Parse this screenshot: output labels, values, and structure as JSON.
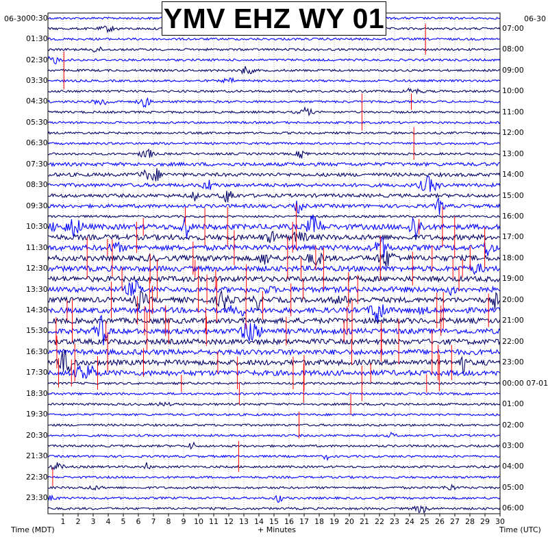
{
  "title": "YMV EHZ WY 01",
  "left_date": "06-30",
  "right_date": "06-30",
  "left_axis_label": "Time (MDT)",
  "right_axis_label": "Time (UTC)",
  "x_axis_label": "+ Minutes",
  "colors": {
    "background": "#ffffff",
    "frame": "#000000",
    "trace_dark": "#000066",
    "trace_blue": "#0000ff",
    "spike": "#ff0000",
    "grid": "#000000"
  },
  "chart_data": {
    "type": "line",
    "title": "YMV EHZ WY 01",
    "xlabel": "+ Minutes",
    "ylabel_left": "Time (MDT)",
    "ylabel_right": "Time (UTC)",
    "xlim": [
      0,
      30
    ],
    "x_ticks": [
      "1",
      "2",
      "3",
      "4",
      "5",
      "6",
      "7",
      "8",
      "9",
      "10",
      "11",
      "12",
      "13",
      "14",
      "15",
      "16",
      "17",
      "18",
      "19",
      "20",
      "21",
      "22",
      "23",
      "24",
      "25",
      "26",
      "27",
      "28",
      "29",
      "30"
    ],
    "y_ticks_left": [
      "00:30",
      "01:30",
      "02:30",
      "03:30",
      "04:30",
      "05:30",
      "06:30",
      "07:30",
      "08:30",
      "09:30",
      "10:30",
      "11:30",
      "12:30",
      "13:30",
      "14:30",
      "15:30",
      "16:30",
      "17:30",
      "18:30",
      "19:30",
      "20:30",
      "21:30",
      "22:30",
      "23:30"
    ],
    "y_ticks_right": [
      "07:00",
      "08:00",
      "09:00",
      "10:00",
      "11:00",
      "12:00",
      "13:00",
      "14:00",
      "15:00",
      "16:00",
      "17:00",
      "18:00",
      "19:00",
      "20:00",
      "21:00",
      "22:00",
      "23:00",
      "00:00 07-01",
      "01:00",
      "02:00",
      "03:00",
      "04:00",
      "05:00",
      "06:00"
    ],
    "rows": 48,
    "minutes_per_row": 30,
    "grid": true,
    "series": []
  }
}
